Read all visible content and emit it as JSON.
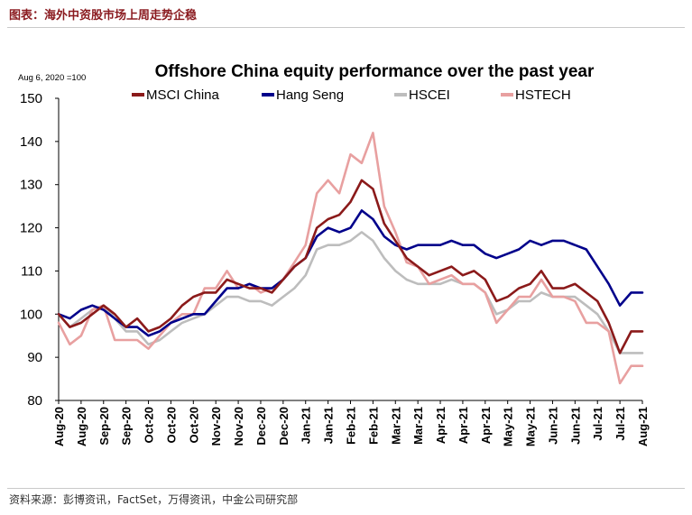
{
  "figure_caption": "图表：海外中资股市场上周走势企稳",
  "source_note": "资料来源：彭博资讯，FactSet，万得资讯，中金公司研究部",
  "chart_data": {
    "type": "line",
    "title": "Offshore China equity performance over the past year",
    "index_note": "Aug 6, 2020 =100",
    "xlabel": "",
    "ylabel": "",
    "ylim": [
      80,
      150
    ],
    "yticks": [
      80,
      90,
      100,
      110,
      120,
      130,
      140,
      150
    ],
    "x_tick_labels": [
      "Aug-20",
      "Aug-20",
      "Sep-20",
      "Sep-20",
      "Oct-20",
      "Oct-20",
      "Oct-20",
      "Nov-20",
      "Nov-20",
      "Dec-20",
      "Dec-20",
      "Jan-21",
      "Jan-21",
      "Feb-21",
      "Feb-21",
      "Mar-21",
      "Mar-21",
      "Apr-21",
      "Apr-21",
      "Apr-21",
      "May-21",
      "May-21",
      "Jun-21",
      "Jun-21",
      "Jul-21",
      "Jul-21",
      "Aug-21"
    ],
    "x_tick_positions": [
      0,
      10,
      20,
      30,
      40,
      50,
      60,
      70,
      80,
      90,
      100,
      110,
      120,
      130,
      140,
      150,
      160,
      170,
      180,
      190,
      200,
      210,
      220,
      230,
      240,
      250,
      260
    ],
    "legend": [
      "MSCI China",
      "Hang Seng",
      "HSCEI",
      "HSTECH"
    ],
    "series": [
      {
        "name": "MSCI China",
        "color": "#8b1a1a",
        "x": [
          0,
          5,
          10,
          15,
          20,
          25,
          30,
          35,
          40,
          45,
          50,
          55,
          60,
          65,
          70,
          75,
          80,
          85,
          90,
          95,
          100,
          105,
          110,
          115,
          120,
          125,
          130,
          135,
          140,
          145,
          150,
          155,
          160,
          165,
          170,
          175,
          180,
          185,
          190,
          195,
          200,
          205,
          210,
          215,
          220,
          225,
          230,
          235,
          240,
          245,
          250,
          255,
          260
        ],
        "values": [
          100,
          97,
          98,
          100,
          102,
          100,
          97,
          99,
          96,
          97,
          99,
          102,
          104,
          105,
          105,
          108,
          107,
          106,
          106,
          105,
          108,
          111,
          113,
          120,
          122,
          123,
          126,
          131,
          129,
          121,
          117,
          113,
          111,
          109,
          110,
          111,
          109,
          110,
          108,
          103,
          104,
          106,
          107,
          110,
          106,
          106,
          107,
          105,
          103,
          98,
          91,
          96,
          96
        ]
      },
      {
        "name": "Hang Seng",
        "color": "#00008b",
        "x": [
          0,
          5,
          10,
          15,
          20,
          25,
          30,
          35,
          40,
          45,
          50,
          55,
          60,
          65,
          70,
          75,
          80,
          85,
          90,
          95,
          100,
          105,
          110,
          115,
          120,
          125,
          130,
          135,
          140,
          145,
          150,
          155,
          160,
          165,
          170,
          175,
          180,
          185,
          190,
          195,
          200,
          205,
          210,
          215,
          220,
          225,
          230,
          235,
          240,
          245,
          250,
          255,
          260
        ],
        "values": [
          100,
          99,
          101,
          102,
          101,
          99,
          97,
          97,
          95,
          96,
          98,
          99,
          100,
          100,
          103,
          106,
          106,
          107,
          106,
          106,
          108,
          111,
          113,
          118,
          120,
          119,
          120,
          124,
          122,
          118,
          116,
          115,
          116,
          116,
          116,
          117,
          116,
          116,
          114,
          113,
          114,
          115,
          117,
          116,
          117,
          117,
          116,
          115,
          111,
          107,
          102,
          105,
          105
        ]
      },
      {
        "name": "HSCEI",
        "color": "#bdbdbd",
        "x": [
          0,
          5,
          10,
          15,
          20,
          25,
          30,
          35,
          40,
          45,
          50,
          55,
          60,
          65,
          70,
          75,
          80,
          85,
          90,
          95,
          100,
          105,
          110,
          115,
          120,
          125,
          130,
          135,
          140,
          145,
          150,
          155,
          160,
          165,
          170,
          175,
          180,
          185,
          190,
          195,
          200,
          205,
          210,
          215,
          220,
          225,
          230,
          235,
          240,
          245,
          250,
          255,
          260
        ],
        "values": [
          100,
          97,
          99,
          101,
          102,
          99,
          96,
          96,
          93,
          94,
          96,
          98,
          99,
          100,
          102,
          104,
          104,
          103,
          103,
          102,
          104,
          106,
          109,
          115,
          116,
          116,
          117,
          119,
          117,
          113,
          110,
          108,
          107,
          107,
          107,
          108,
          107,
          107,
          105,
          100,
          101,
          103,
          103,
          105,
          104,
          104,
          104,
          102,
          100,
          96,
          91,
          91,
          91
        ]
      },
      {
        "name": "HSTECH",
        "color": "#e8a0a0",
        "x": [
          0,
          5,
          10,
          15,
          20,
          25,
          30,
          35,
          40,
          45,
          50,
          55,
          60,
          65,
          70,
          75,
          80,
          85,
          90,
          95,
          100,
          105,
          110,
          115,
          120,
          125,
          130,
          135,
          140,
          145,
          150,
          155,
          160,
          165,
          170,
          175,
          180,
          185,
          190,
          195,
          200,
          205,
          210,
          215,
          220,
          225,
          230,
          235,
          240,
          245,
          250,
          255,
          260
        ],
        "values": [
          98,
          93,
          95,
          101,
          102,
          94,
          94,
          94,
          92,
          95,
          98,
          100,
          100,
          106,
          106,
          110,
          106,
          107,
          105,
          106,
          108,
          112,
          116,
          128,
          131,
          128,
          137,
          135,
          142,
          125,
          119,
          112,
          111,
          107,
          108,
          109,
          107,
          107,
          105,
          98,
          101,
          104,
          104,
          108,
          104,
          104,
          103,
          98,
          98,
          96,
          84,
          88,
          88
        ]
      }
    ]
  }
}
